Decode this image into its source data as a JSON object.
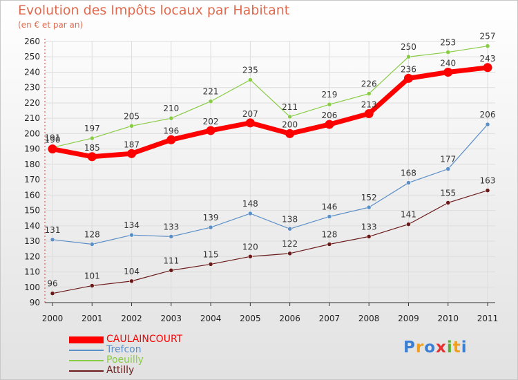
{
  "chart_data": {
    "type": "line",
    "title": "Evolution des Impôts locaux par Habitant",
    "subtitle": "(en € et par an)",
    "xlabel": "",
    "ylabel": "",
    "categories": [
      "2000",
      "2001",
      "2002",
      "2003",
      "2004",
      "2005",
      "2006",
      "2007",
      "2008",
      "2009",
      "2010",
      "2011"
    ],
    "ylim": [
      90,
      260
    ],
    "yticks": [
      90,
      100,
      110,
      120,
      130,
      140,
      150,
      160,
      170,
      180,
      190,
      200,
      210,
      220,
      230,
      240,
      250,
      260
    ],
    "grid": true,
    "legend_position": "bottom-left",
    "series": [
      {
        "name": "CAULAINCOURT",
        "color": "#ff0000",
        "values": [
          190,
          185,
          187,
          196,
          202,
          207,
          200,
          206,
          213,
          236,
          240,
          243
        ]
      },
      {
        "name": "Trefcon",
        "color": "#5b8fc8",
        "values": [
          131,
          128,
          134,
          133,
          139,
          148,
          138,
          146,
          152,
          168,
          177,
          206
        ]
      },
      {
        "name": "Poeuilly",
        "color": "#88cc44",
        "values": [
          191,
          197,
          205,
          210,
          221,
          235,
          211,
          219,
          226,
          250,
          253,
          257
        ]
      },
      {
        "name": "Attilly",
        "color": "#6b1a1a",
        "values": [
          96,
          101,
          104,
          111,
          115,
          120,
          122,
          128,
          133,
          141,
          155,
          163
        ]
      }
    ]
  },
  "logo": {
    "text": "Proxiti",
    "letters": [
      {
        "ch": "P",
        "color": "#3a7fd4"
      },
      {
        "ch": "r",
        "color": "#f0a020"
      },
      {
        "ch": "o",
        "color": "#3a7fd4"
      },
      {
        "ch": "x",
        "color": "#e83030"
      },
      {
        "ch": "i",
        "color": "#58b030"
      },
      {
        "ch": "t",
        "color": "#f0a020"
      },
      {
        "ch": "i",
        "color": "#3a7fd4"
      }
    ]
  }
}
